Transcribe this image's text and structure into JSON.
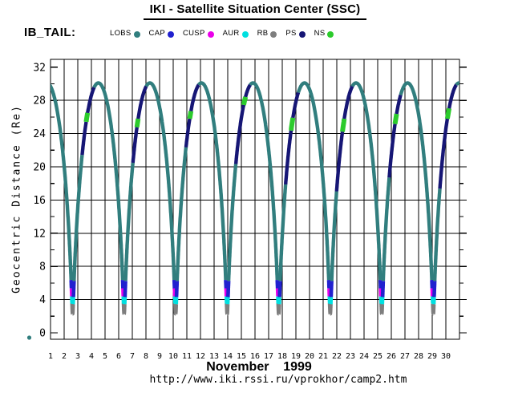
{
  "header": {
    "title": "IKI - Satellite Situation Center (SSC)",
    "group_label": "IB_TAIL:"
  },
  "legend": {
    "items": [
      {
        "label": "LOBS",
        "color": "#317E7E"
      },
      {
        "label": "CAP",
        "color": "#2121CF"
      },
      {
        "label": "CUSP",
        "color": "#EA00EA"
      },
      {
        "label": "AUR",
        "color": "#00E0E0"
      },
      {
        "label": "RB",
        "color": "#7E7E7E"
      },
      {
        "label": "PS",
        "color": "#161675"
      },
      {
        "label": "NS",
        "color": "#2CCB2C"
      }
    ]
  },
  "footer": {
    "url": "http://www.iki.rssi.ru/vprokhor/camp2.htm"
  },
  "chart_data": {
    "type": "line",
    "title": "IKI - Satellite Situation Center (SSC)",
    "x_axis": {
      "title": "November    1999",
      "range_days": [
        1,
        31
      ],
      "tick_labels": [
        "1",
        "2",
        "3",
        "4",
        "5",
        "6",
        "7",
        "8",
        "9",
        "10",
        "11",
        "12",
        "13",
        "14",
        "15",
        "16",
        "17",
        "18",
        "19",
        "20",
        "21",
        "22",
        "23",
        "24",
        "25",
        "26",
        "27",
        "28",
        "29",
        "30"
      ],
      "gridline_every_days": 1
    },
    "y_axis": {
      "label": "Geocentric Distance (Re)",
      "range_re": [
        -0.8,
        33
      ],
      "tick_labels": [
        "0",
        "4",
        "8",
        "12",
        "16",
        "20",
        "24",
        "28",
        "32"
      ],
      "major_tick_step_re": 4,
      "minor_tick_step_re": 2,
      "gridlines_re": [
        4,
        8,
        12,
        16,
        20,
        24,
        28
      ]
    },
    "orbital_model": {
      "period_days": 3.78,
      "first_perigee_day": 2.62,
      "perigee_re": 2.3,
      "apogee_re": 30.1,
      "num_orbits_visible": 8
    },
    "region_boundaries_re": {
      "rb_max": 3.5,
      "aur_max": 4.35,
      "cap_max": 6.35,
      "cusp_descending_max": 5.35
    },
    "orbits": [
      {
        "ps_lo": 21.5,
        "ps_hi": 29.6,
        "ns": 26.0,
        "ns_hw": 0.5
      },
      {
        "ps_lo": 20.5,
        "ps_hi": 29.7,
        "ns": 25.4,
        "ns_hw": 0.5
      },
      {
        "ps_lo": 22.5,
        "ps_hi": 29.9,
        "ns": 26.3,
        "ns_hw": 0.5
      },
      {
        "ps_lo": 20.4,
        "ps_hi": 29.9,
        "ns": 28.0,
        "ns_hw": 0.5
      },
      {
        "ps_lo": 17.9,
        "ps_hi": 29.0,
        "ns": 25.2,
        "ns_hw": 0.8
      },
      {
        "ps_lo": 17.1,
        "ps_hi": 29.7,
        "ns": 25.1,
        "ns_hw": 0.8
      },
      {
        "ps_lo": 18.8,
        "ps_hi": 28.7,
        "ns": 25.8,
        "ns_hw": 0.6
      },
      {
        "ps_lo": 17.5,
        "ps_hi": 29.9,
        "ns": 26.5,
        "ns_hw": 0.6
      }
    ],
    "colors": {
      "lobs": "#317E7E",
      "cap": "#2121CF",
      "cusp": "#EA00EA",
      "aur": "#00E0E0",
      "rb": "#7E7E7E",
      "ps": "#161675",
      "ns": "#2CCB2C",
      "grid": "#000000"
    }
  }
}
